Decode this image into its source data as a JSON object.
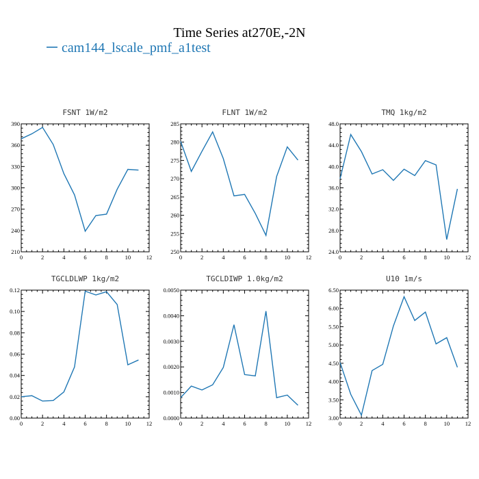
{
  "figure": {
    "title": "Time Series at270E,-2N",
    "legend": {
      "label": "cam144_lscale_pmf_a1test",
      "color": "#1f77b4"
    }
  },
  "chart_data": [
    {
      "type": "line",
      "title": "FSNT   1W/m2",
      "x": [
        0,
        1,
        2,
        3,
        4,
        5,
        6,
        7,
        8,
        9,
        10,
        11
      ],
      "xlim": [
        0,
        12
      ],
      "xticks": [
        "0",
        "2",
        "4",
        "6",
        "8",
        "10",
        "12"
      ],
      "xtick_values": [
        0,
        2,
        4,
        6,
        8,
        10,
        12
      ],
      "series": [
        {
          "values": [
            369,
            376,
            385,
            361,
            320,
            290,
            239,
            261,
            263,
            298,
            326,
            325
          ],
          "color": "#1f77b4"
        }
      ],
      "ylim": [
        210,
        390
      ],
      "yticks": [
        "210",
        "240",
        "270",
        "300",
        "330",
        "360",
        "390"
      ],
      "ytick_values": [
        210,
        240,
        270,
        300,
        330,
        360,
        390
      ]
    },
    {
      "type": "line",
      "title": "FLNT   1W/m2",
      "x": [
        0,
        1,
        2,
        3,
        4,
        5,
        6,
        7,
        8,
        9,
        10,
        11
      ],
      "xlim": [
        0,
        12
      ],
      "xticks": [
        "0",
        "2",
        "4",
        "6",
        "8",
        "10",
        "12"
      ],
      "xtick_values": [
        0,
        2,
        4,
        6,
        8,
        10,
        12
      ],
      "series": [
        {
          "values": [
            280.2,
            272,
            277.5,
            282.8,
            275.5,
            265.3,
            265.7,
            260.5,
            254.5,
            270.6,
            278.7,
            275.1
          ],
          "color": "#1f77b4"
        }
      ],
      "ylim": [
        250,
        285
      ],
      "yticks": [
        "250",
        "255",
        "260",
        "265",
        "270",
        "275",
        "280",
        "285"
      ],
      "ytick_values": [
        250,
        255,
        260,
        265,
        270,
        275,
        280,
        285
      ]
    },
    {
      "type": "line",
      "title": "TMQ   1kg/m2",
      "x": [
        0,
        1,
        2,
        3,
        4,
        5,
        6,
        7,
        8,
        9,
        10,
        11
      ],
      "xlim": [
        0,
        12
      ],
      "xticks": [
        "0",
        "2",
        "4",
        "6",
        "8",
        "10",
        "12"
      ],
      "xtick_values": [
        0,
        2,
        4,
        6,
        8,
        10,
        12
      ],
      "series": [
        {
          "values": [
            37.7,
            46,
            42.8,
            38.6,
            39.4,
            37.4,
            39.5,
            38.3,
            41.1,
            40.3,
            26.3,
            35.8
          ],
          "color": "#1f77b4"
        }
      ],
      "ylim": [
        24,
        48
      ],
      "yticks": [
        "24.0",
        "28.0",
        "32.0",
        "36.0",
        "40.0",
        "44.0",
        "48.0"
      ],
      "ytick_values": [
        24,
        28,
        32,
        36,
        40,
        44,
        48
      ]
    },
    {
      "type": "line",
      "title": "TGCLDLWP   1kg/m2",
      "x": [
        0,
        1,
        2,
        3,
        4,
        5,
        6,
        7,
        8,
        9,
        10,
        11
      ],
      "xlim": [
        0,
        12
      ],
      "xticks": [
        "0",
        "2",
        "4",
        "6",
        "8",
        "10",
        "12"
      ],
      "xtick_values": [
        0,
        2,
        4,
        6,
        8,
        10,
        12
      ],
      "series": [
        {
          "values": [
            0.02,
            0.021,
            0.016,
            0.0165,
            0.0245,
            0.048,
            0.119,
            0.1155,
            0.1185,
            0.1065,
            0.05,
            0.0545
          ],
          "color": "#1f77b4"
        }
      ],
      "ylim": [
        0,
        0.12
      ],
      "yticks": [
        "0.00",
        "0.02",
        "0.04",
        "0.06",
        "0.08",
        "0.10",
        "0.12"
      ],
      "ytick_values": [
        0,
        0.02,
        0.04,
        0.06,
        0.08,
        0.1,
        0.12
      ]
    },
    {
      "type": "line",
      "title": "TGCLDIWP   1.0kg/m2",
      "x": [
        0,
        1,
        2,
        3,
        4,
        5,
        6,
        7,
        8,
        9,
        10,
        11
      ],
      "xlim": [
        0,
        12
      ],
      "xticks": [
        "0",
        "2",
        "4",
        "6",
        "8",
        "10",
        "12"
      ],
      "xtick_values": [
        0,
        2,
        4,
        6,
        8,
        10,
        12
      ],
      "series": [
        {
          "values": [
            0.0008,
            0.00125,
            0.0011,
            0.0013,
            0.00198,
            0.00365,
            0.0017,
            0.00165,
            0.00418,
            0.0008,
            0.0009,
            0.0005
          ],
          "color": "#1f77b4"
        }
      ],
      "ylim": [
        0,
        0.005
      ],
      "yticks": [
        "0.0000",
        "0.0010",
        "0.0020",
        "0.0030",
        "0.0040",
        "0.0050"
      ],
      "ytick_values": [
        0,
        0.001,
        0.002,
        0.003,
        0.004,
        0.005
      ]
    },
    {
      "type": "line",
      "title": "U10   1m/s",
      "x": [
        0,
        1,
        2,
        3,
        4,
        5,
        6,
        7,
        8,
        9,
        10,
        11
      ],
      "xlim": [
        0,
        12
      ],
      "xticks": [
        "0",
        "2",
        "4",
        "6",
        "8",
        "10",
        "12"
      ],
      "xtick_values": [
        0,
        2,
        4,
        6,
        8,
        10,
        12
      ],
      "series": [
        {
          "values": [
            4.52,
            3.65,
            3.08,
            4.3,
            4.47,
            5.52,
            6.32,
            5.67,
            5.9,
            5.03,
            5.2,
            4.39
          ],
          "color": "#1f77b4"
        }
      ],
      "ylim": [
        3,
        6.5
      ],
      "yticks": [
        "3.00",
        "3.50",
        "4.00",
        "4.50",
        "5.00",
        "5.50",
        "6.00",
        "6.50"
      ],
      "ytick_values": [
        3,
        3.5,
        4,
        4.5,
        5,
        5.5,
        6,
        6.5
      ]
    }
  ]
}
